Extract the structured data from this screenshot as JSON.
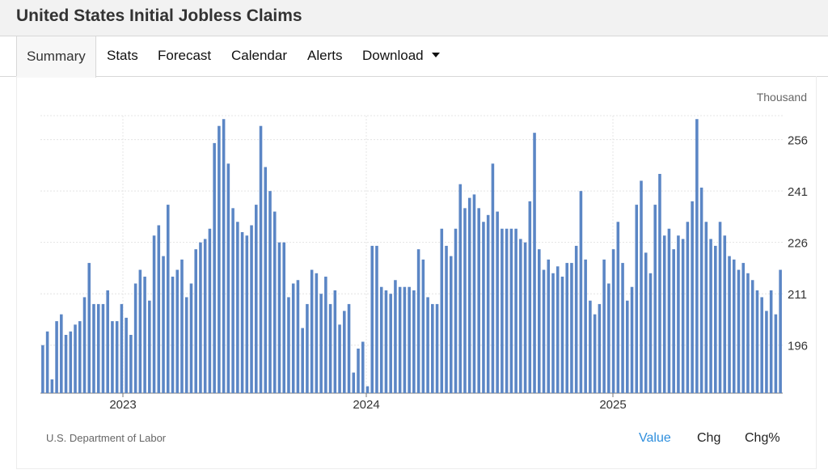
{
  "header": {
    "title": "United States Initial Jobless Claims"
  },
  "tabs": [
    {
      "label": "Summary"
    },
    {
      "label": "Stats"
    },
    {
      "label": "Forecast"
    },
    {
      "label": "Calendar"
    },
    {
      "label": "Alerts"
    },
    {
      "label": "Download"
    }
  ],
  "footer": {
    "source": "U.S. Department of Labor",
    "toggles": [
      "Value",
      "Chg",
      "Chg%"
    ]
  },
  "colors": {
    "bar": "#5b86c5",
    "active_toggle": "#2f8fdd",
    "grid": "#e4e4e4"
  },
  "chart_data": {
    "type": "bar",
    "unit_label": "Thousand",
    "x_tick_labels": [
      "2023",
      "2024",
      "2025"
    ],
    "y_ticks": [
      196,
      211,
      226,
      241,
      256
    ],
    "ylim": [
      182,
      263
    ],
    "grid": true,
    "series": [
      {
        "values": [
          196,
          200,
          186,
          203,
          205,
          199,
          200,
          202,
          203,
          210,
          220,
          208,
          208,
          208,
          212,
          203,
          203,
          208,
          204,
          199,
          214,
          218,
          216,
          209,
          228,
          231,
          222,
          237,
          216,
          218,
          221,
          210,
          214,
          224,
          226,
          227,
          230,
          255,
          260,
          262,
          249,
          236,
          232,
          229,
          228,
          231,
          237,
          260,
          248,
          241,
          235,
          226,
          226,
          210,
          214,
          215,
          201,
          208,
          218,
          217,
          211,
          216,
          208,
          212,
          202,
          206,
          208,
          188,
          195,
          197,
          184,
          225,
          225,
          213,
          212,
          211,
          215,
          213,
          213,
          213,
          212,
          224,
          221,
          210,
          208,
          208,
          230,
          225,
          222,
          230,
          243,
          236,
          239,
          240,
          236,
          232,
          234,
          249,
          235,
          230,
          230,
          230,
          230,
          227,
          226,
          238,
          258,
          224,
          218,
          221,
          217,
          219,
          216,
          220,
          220,
          225,
          241,
          221,
          209,
          205,
          208,
          221,
          214,
          224,
          232,
          220,
          209,
          213,
          237,
          244,
          223,
          217,
          237,
          246,
          228,
          230,
          224,
          228,
          227,
          232,
          238,
          262,
          242,
          232,
          227,
          225,
          232,
          228,
          222,
          221,
          218,
          220,
          217,
          215,
          212,
          210,
          206,
          212,
          205,
          218
        ]
      }
    ]
  }
}
